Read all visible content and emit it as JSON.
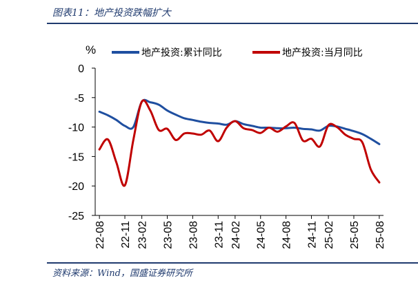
{
  "figure": {
    "title": "图表11：地产投资跌幅扩大",
    "source": "资料来源：Wind，国盛证券研究所"
  },
  "colors": {
    "series_0": "#1f4fa0",
    "series_1": "#c00000"
  },
  "chart_data": {
    "type": "line",
    "unit_label": "%",
    "ylim": [
      -25,
      0
    ],
    "yticks": [
      0,
      -5,
      -10,
      -15,
      -20,
      -25
    ],
    "xtick_labels": [
      "22-08",
      "22-11",
      "23-02",
      "23-05",
      "23-08",
      "23-11",
      "24-02",
      "24-05",
      "24-08",
      "24-11",
      "25-02",
      "25-05",
      "25-08"
    ],
    "legend_position": "top",
    "grid": false,
    "x": [
      "22-08",
      "22-09",
      "22-10",
      "22-11",
      "22-12",
      "23-02",
      "23-03",
      "23-04",
      "23-05",
      "23-06",
      "23-07",
      "23-08",
      "23-09",
      "23-10",
      "23-11",
      "23-12",
      "24-02",
      "24-03",
      "24-04",
      "24-05",
      "24-06",
      "24-07",
      "24-08",
      "24-09",
      "24-10",
      "24-11",
      "24-12",
      "25-02",
      "25-03",
      "25-04",
      "25-05",
      "25-06",
      "25-07",
      "25-08"
    ],
    "series": [
      {
        "name": "地产投资:累计同比",
        "values": [
          -7.4,
          -8.0,
          -8.8,
          -9.8,
          -10.0,
          -5.7,
          -5.8,
          -6.2,
          -7.2,
          -7.9,
          -8.5,
          -8.8,
          -9.1,
          -9.3,
          -9.4,
          -9.6,
          -9.0,
          -9.5,
          -9.8,
          -10.1,
          -10.1,
          -10.2,
          -10.2,
          -10.1,
          -10.3,
          -10.4,
          -10.6,
          -9.8,
          -9.9,
          -10.3,
          -10.7,
          -11.2,
          -12.0,
          -12.9
        ]
      },
      {
        "name": "地产投资:当月同比",
        "values": [
          -13.8,
          -12.1,
          -16.0,
          -19.9,
          -12.2,
          -5.7,
          -7.2,
          -10.5,
          -10.3,
          -12.2,
          -11.1,
          -11.1,
          -11.3,
          -10.6,
          -12.4,
          -10.1,
          -9.0,
          -10.2,
          -10.5,
          -11.0,
          -10.1,
          -10.8,
          -9.9,
          -9.3,
          -12.3,
          -12.0,
          -13.3,
          -9.7,
          -10.0,
          -11.3,
          -12.0,
          -12.6,
          -17.2,
          -19.4
        ]
      }
    ]
  }
}
